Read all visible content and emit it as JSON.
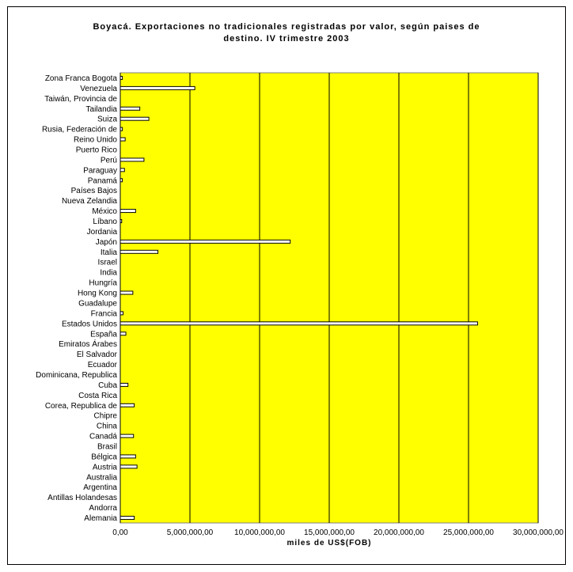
{
  "chart_data": {
    "type": "bar",
    "orientation": "horizontal",
    "title": [
      "Boyacá. Exportaciones no tradicionales registradas por valor, según paises de",
      "destino. IV trimestre 2003"
    ],
    "xlabel": "miles de US$(FOB)",
    "ylabel": "",
    "xlim": [
      0,
      30000000
    ],
    "xticks": [
      0,
      5000000,
      10000000,
      15000000,
      20000000,
      25000000,
      30000000
    ],
    "xtick_labels": [
      "0,00",
      "5,000,000,00",
      "10,000,000,00",
      "15,000,000,00",
      "20,000,000,00",
      "25,000,000,00",
      "30,000,000,00"
    ],
    "grid": "vertical",
    "legend": "none",
    "colors": {
      "plot_background": "#ffff00",
      "bar_fill": "#ffffff",
      "bar_stroke": "#000000",
      "gridline": "#000000"
    },
    "categories": [
      "Zona Franca Bogota",
      "Venezuela",
      "Taiwán, Provincia de",
      "Tailandia",
      "Suiza",
      "Rusia, Federación de",
      "Reino Unido",
      "Puerto Rico",
      "Perú",
      "Paraguay",
      "Panamá",
      "Países Bajos",
      "Nueva Zelandia",
      "México",
      "Líbano",
      "Jordania",
      "Japón",
      "Italia",
      "Israel",
      "India",
      "Hungría",
      "Hong Kong",
      "Guadalupe",
      "Francia",
      "Estados Unidos",
      "España",
      "Emiratos Árabes",
      "El Salvador",
      "Ecuador",
      "Dominicana, Republica",
      "Cuba",
      "Costa Rica",
      "Corea, Republica de",
      "Chipre",
      "China",
      "Canadá",
      "Brasil",
      "Bélgica",
      "Austria",
      "Australia",
      "Argentina",
      "Antillas Holandesas",
      "Andorra",
      "Alemania"
    ],
    "values": [
      150000,
      5350000,
      0,
      1400000,
      2050000,
      150000,
      350000,
      0,
      1700000,
      300000,
      150000,
      0,
      0,
      1100000,
      100000,
      0,
      12200000,
      2700000,
      0,
      0,
      0,
      900000,
      0,
      200000,
      25650000,
      400000,
      0,
      0,
      0,
      0,
      550000,
      0,
      1000000,
      0,
      0,
      950000,
      0,
      1100000,
      1200000,
      0,
      0,
      0,
      0,
      1000000
    ]
  }
}
